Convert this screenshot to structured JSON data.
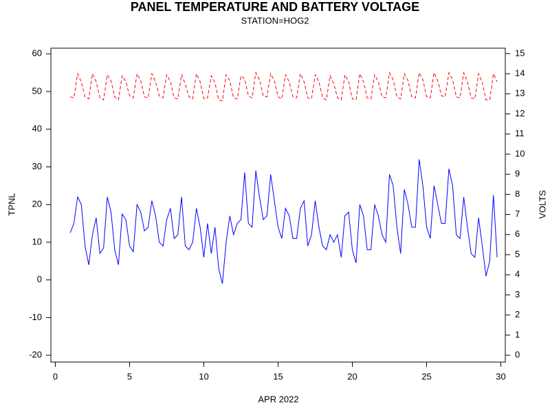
{
  "chart_data": {
    "type": "line",
    "title": "PANEL TEMPERATURE AND BATTERY VOLTAGE",
    "subtitle": "STATION=HOG2",
    "x_label": "APR 2022",
    "y_label": "TPNL",
    "y2_label": "VOLTS",
    "xlim": [
      -0.3,
      30.3
    ],
    "xticks": [
      0,
      5,
      10,
      15,
      20,
      25,
      30
    ],
    "ylim": [
      -21.8,
      61.5
    ],
    "yticks": [
      -20,
      -10,
      0,
      10,
      20,
      30,
      40,
      50,
      60
    ],
    "y2lim": [
      -0.34,
      15.27
    ],
    "y2ticks": [
      0,
      1,
      2,
      3,
      4,
      5,
      6,
      7,
      8,
      9,
      10,
      11,
      12,
      13,
      14,
      15
    ],
    "x": [
      1,
      1.25,
      1.5,
      1.75,
      2,
      2.25,
      2.5,
      2.75,
      3,
      3.25,
      3.5,
      3.75,
      4,
      4.25,
      4.5,
      4.75,
      5,
      5.25,
      5.5,
      5.75,
      6,
      6.25,
      6.5,
      6.75,
      7,
      7.25,
      7.5,
      7.75,
      8,
      8.25,
      8.5,
      8.75,
      9,
      9.25,
      9.5,
      9.75,
      10,
      10.25,
      10.5,
      10.75,
      11,
      11.25,
      11.5,
      11.75,
      12,
      12.25,
      12.5,
      12.75,
      13,
      13.25,
      13.5,
      13.75,
      14,
      14.25,
      14.5,
      14.75,
      15,
      15.25,
      15.5,
      15.75,
      16,
      16.25,
      16.5,
      16.75,
      17,
      17.25,
      17.5,
      17.75,
      18,
      18.25,
      18.5,
      18.75,
      19,
      19.25,
      19.5,
      19.75,
      20,
      20.25,
      20.5,
      20.75,
      21,
      21.25,
      21.5,
      21.75,
      22,
      22.25,
      22.5,
      22.75,
      23,
      23.25,
      23.5,
      23.75,
      24,
      24.25,
      24.5,
      24.75,
      25,
      25.25,
      25.5,
      25.75,
      26,
      26.25,
      26.5,
      26.75,
      27,
      27.25,
      27.5,
      27.75,
      28,
      28.25,
      28.5,
      28.75,
      29,
      29.25,
      29.5,
      29.75
    ],
    "series": [
      {
        "name": "TPNL",
        "color": "#0000ff",
        "line_style": "solid",
        "values": [
          12.5,
          15,
          22,
          20,
          9,
          4,
          12,
          16.5,
          7,
          8.5,
          22,
          18,
          8,
          4,
          17.5,
          16,
          9,
          7.5,
          20,
          18,
          13,
          14,
          21,
          17,
          10,
          9,
          16,
          19,
          11,
          12,
          22,
          9,
          8,
          10,
          19,
          14,
          6,
          15,
          7,
          14,
          3,
          -1,
          10,
          17,
          12,
          15,
          16,
          28.5,
          15,
          14,
          29,
          22,
          16,
          17,
          28,
          21,
          14,
          11,
          19,
          17,
          11,
          11,
          19,
          21,
          9,
          12,
          21,
          14,
          9,
          8,
          12,
          10,
          12,
          6,
          17,
          18,
          8,
          4.5,
          20,
          17,
          8,
          8,
          20,
          17,
          12,
          10,
          28,
          25,
          14,
          7,
          24,
          20,
          14,
          14,
          32,
          25,
          14,
          11,
          25,
          20,
          15,
          15,
          29.5,
          25,
          12,
          11,
          22,
          14,
          7,
          6,
          16.5,
          9,
          1,
          5,
          22.5,
          6
        ]
      },
      {
        "name": "VOLTS",
        "color": "#ff0000",
        "line_style": "dashed",
        "axis": "y2",
        "values": [
          12.85,
          12.8,
          14.0,
          13.6,
          12.85,
          12.75,
          14.0,
          13.6,
          12.8,
          12.7,
          13.95,
          13.65,
          12.85,
          12.7,
          13.9,
          13.6,
          12.9,
          12.8,
          14.0,
          13.65,
          12.85,
          12.8,
          14.0,
          13.6,
          12.9,
          12.8,
          13.95,
          13.6,
          12.8,
          12.75,
          13.95,
          13.5,
          12.85,
          12.75,
          14.0,
          13.6,
          12.75,
          12.8,
          13.9,
          13.55,
          12.7,
          12.65,
          13.95,
          13.65,
          12.8,
          12.75,
          13.9,
          13.75,
          12.9,
          12.8,
          14.05,
          13.7,
          12.9,
          12.85,
          14.0,
          13.65,
          12.85,
          12.75,
          13.95,
          13.6,
          12.85,
          12.8,
          14.0,
          13.6,
          12.8,
          12.75,
          13.95,
          13.6,
          12.8,
          12.7,
          13.9,
          13.5,
          12.8,
          12.7,
          13.95,
          13.6,
          12.75,
          12.7,
          14.0,
          13.6,
          12.8,
          12.75,
          13.95,
          13.6,
          12.85,
          12.8,
          14.05,
          13.7,
          12.85,
          12.75,
          14.0,
          13.65,
          12.85,
          12.8,
          14.05,
          13.7,
          12.85,
          12.8,
          14.05,
          13.65,
          12.9,
          12.85,
          14.05,
          13.7,
          12.85,
          12.8,
          14.05,
          13.6,
          12.8,
          12.75,
          14.0,
          13.55,
          12.7,
          12.7,
          14.0,
          13.6
        ]
      }
    ]
  }
}
